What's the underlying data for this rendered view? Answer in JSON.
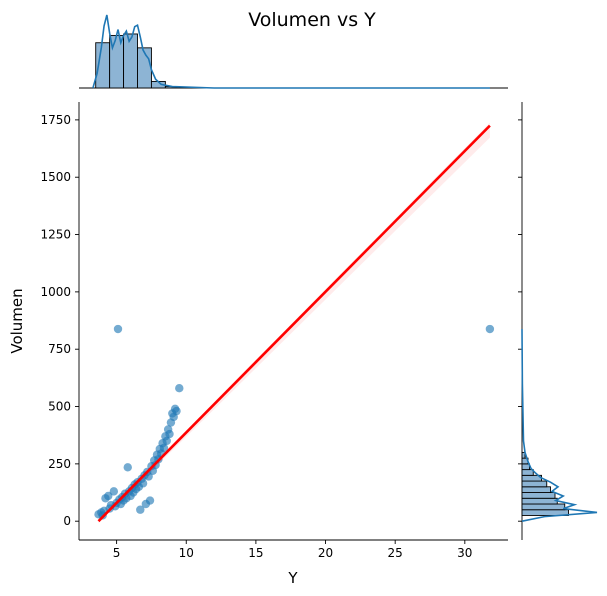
{
  "chart_data": {
    "type": "scatter",
    "title": "Volumen vs Y",
    "xlabel": "Y",
    "ylabel": "Volumen",
    "xlim": [
      2.3,
      33.1
    ],
    "ylim": [
      -82,
      1828
    ],
    "xticks": [
      5,
      10,
      15,
      20,
      25,
      30
    ],
    "yticks": [
      0,
      250,
      500,
      750,
      1000,
      1250,
      1500,
      1750
    ],
    "grid": false,
    "legend": "none",
    "colors": {
      "points": "#1f77b4",
      "regression": "#ff0000",
      "hist_fill": "#8db4d4",
      "kde": "#1f77b4"
    },
    "regression_line": {
      "x": [
        3.7,
        31.8
      ],
      "y": [
        0,
        1725
      ]
    },
    "outliers": [
      {
        "x": 5.1,
        "y": 838
      },
      {
        "x": 31.8,
        "y": 838
      }
    ],
    "cluster_points": [
      {
        "x": 3.7,
        "y": 30
      },
      {
        "x": 3.9,
        "y": 38
      },
      {
        "x": 4.0,
        "y": 25
      },
      {
        "x": 4.1,
        "y": 45
      },
      {
        "x": 4.2,
        "y": 100
      },
      {
        "x": 4.4,
        "y": 110
      },
      {
        "x": 4.5,
        "y": 55
      },
      {
        "x": 4.6,
        "y": 70
      },
      {
        "x": 4.8,
        "y": 130
      },
      {
        "x": 4.9,
        "y": 65
      },
      {
        "x": 5.0,
        "y": 80
      },
      {
        "x": 5.2,
        "y": 95
      },
      {
        "x": 5.3,
        "y": 75
      },
      {
        "x": 5.4,
        "y": 105
      },
      {
        "x": 5.5,
        "y": 90
      },
      {
        "x": 5.6,
        "y": 120
      },
      {
        "x": 5.7,
        "y": 100
      },
      {
        "x": 5.8,
        "y": 235
      },
      {
        "x": 5.9,
        "y": 130
      },
      {
        "x": 6.0,
        "y": 110
      },
      {
        "x": 6.1,
        "y": 145
      },
      {
        "x": 6.2,
        "y": 125
      },
      {
        "x": 6.3,
        "y": 160
      },
      {
        "x": 6.4,
        "y": 140
      },
      {
        "x": 6.5,
        "y": 170
      },
      {
        "x": 6.6,
        "y": 150
      },
      {
        "x": 6.7,
        "y": 50
      },
      {
        "x": 6.8,
        "y": 185
      },
      {
        "x": 6.9,
        "y": 165
      },
      {
        "x": 7.0,
        "y": 200
      },
      {
        "x": 7.1,
        "y": 75
      },
      {
        "x": 7.2,
        "y": 215
      },
      {
        "x": 7.3,
        "y": 195
      },
      {
        "x": 7.4,
        "y": 90
      },
      {
        "x": 7.5,
        "y": 240
      },
      {
        "x": 7.6,
        "y": 220
      },
      {
        "x": 7.7,
        "y": 265
      },
      {
        "x": 7.8,
        "y": 245
      },
      {
        "x": 7.9,
        "y": 290
      },
      {
        "x": 8.0,
        "y": 270
      },
      {
        "x": 8.1,
        "y": 315
      },
      {
        "x": 8.2,
        "y": 295
      },
      {
        "x": 8.3,
        "y": 340
      },
      {
        "x": 8.4,
        "y": 320
      },
      {
        "x": 8.5,
        "y": 370
      },
      {
        "x": 8.6,
        "y": 350
      },
      {
        "x": 8.7,
        "y": 400
      },
      {
        "x": 8.8,
        "y": 380
      },
      {
        "x": 8.9,
        "y": 430
      },
      {
        "x": 9.0,
        "y": 470
      },
      {
        "x": 9.1,
        "y": 455
      },
      {
        "x": 9.2,
        "y": 490
      },
      {
        "x": 9.3,
        "y": 480
      },
      {
        "x": 9.5,
        "y": 580
      }
    ],
    "top_marginal": {
      "axis": "Y",
      "hist_bins": [
        {
          "from": 3.5,
          "to": 4.5,
          "count": 0.62
        },
        {
          "from": 4.5,
          "to": 5.5,
          "count": 0.72
        },
        {
          "from": 5.5,
          "to": 6.5,
          "count": 0.74
        },
        {
          "from": 6.5,
          "to": 7.5,
          "count": 0.55
        },
        {
          "from": 7.5,
          "to": 8.5,
          "count": 0.09
        },
        {
          "from": 8.5,
          "to": 9.5,
          "count": 0.02
        }
      ],
      "kde": [
        {
          "x": 3.3,
          "y": 0.0
        },
        {
          "x": 3.6,
          "y": 0.2
        },
        {
          "x": 3.9,
          "y": 0.55
        },
        {
          "x": 4.1,
          "y": 0.85
        },
        {
          "x": 4.3,
          "y": 1.0
        },
        {
          "x": 4.5,
          "y": 0.75
        },
        {
          "x": 4.7,
          "y": 0.55
        },
        {
          "x": 4.9,
          "y": 0.65
        },
        {
          "x": 5.1,
          "y": 0.8
        },
        {
          "x": 5.3,
          "y": 0.62
        },
        {
          "x": 5.5,
          "y": 0.72
        },
        {
          "x": 5.7,
          "y": 0.78
        },
        {
          "x": 5.9,
          "y": 0.64
        },
        {
          "x": 6.1,
          "y": 0.7
        },
        {
          "x": 6.3,
          "y": 0.84
        },
        {
          "x": 6.5,
          "y": 0.86
        },
        {
          "x": 6.7,
          "y": 0.7
        },
        {
          "x": 6.9,
          "y": 0.52
        },
        {
          "x": 7.1,
          "y": 0.45
        },
        {
          "x": 7.3,
          "y": 0.4
        },
        {
          "x": 7.5,
          "y": 0.25
        },
        {
          "x": 7.8,
          "y": 0.12
        },
        {
          "x": 8.2,
          "y": 0.05
        },
        {
          "x": 9.0,
          "y": 0.02
        },
        {
          "x": 12.0,
          "y": 0.0
        },
        {
          "x": 31.8,
          "y": 0.0
        }
      ]
    },
    "right_marginal": {
      "axis": "Volumen",
      "hist_bins": [
        {
          "from": 25,
          "to": 50,
          "count": 0.62
        },
        {
          "from": 50,
          "to": 75,
          "count": 0.57
        },
        {
          "from": 75,
          "to": 100,
          "count": 0.47
        },
        {
          "from": 100,
          "to": 125,
          "count": 0.44
        },
        {
          "from": 125,
          "to": 150,
          "count": 0.38
        },
        {
          "from": 150,
          "to": 175,
          "count": 0.33
        },
        {
          "from": 175,
          "to": 200,
          "count": 0.26
        },
        {
          "from": 200,
          "to": 225,
          "count": 0.15
        },
        {
          "from": 225,
          "to": 250,
          "count": 0.1
        },
        {
          "from": 250,
          "to": 275,
          "count": 0.08
        },
        {
          "from": 275,
          "to": 300,
          "count": 0.04
        }
      ],
      "kde": [
        {
          "v": 0,
          "d": 0.0
        },
        {
          "v": 20,
          "d": 0.3
        },
        {
          "v": 38,
          "d": 1.0
        },
        {
          "v": 55,
          "d": 0.55
        },
        {
          "v": 72,
          "d": 0.7
        },
        {
          "v": 90,
          "d": 0.45
        },
        {
          "v": 110,
          "d": 0.55
        },
        {
          "v": 130,
          "d": 0.4
        },
        {
          "v": 150,
          "d": 0.48
        },
        {
          "v": 170,
          "d": 0.38
        },
        {
          "v": 190,
          "d": 0.25
        },
        {
          "v": 210,
          "d": 0.18
        },
        {
          "v": 230,
          "d": 0.12
        },
        {
          "v": 260,
          "d": 0.08
        },
        {
          "v": 300,
          "d": 0.04
        },
        {
          "v": 350,
          "d": 0.02
        },
        {
          "v": 600,
          "d": 0.005
        },
        {
          "v": 838,
          "d": 0.0
        }
      ]
    }
  }
}
